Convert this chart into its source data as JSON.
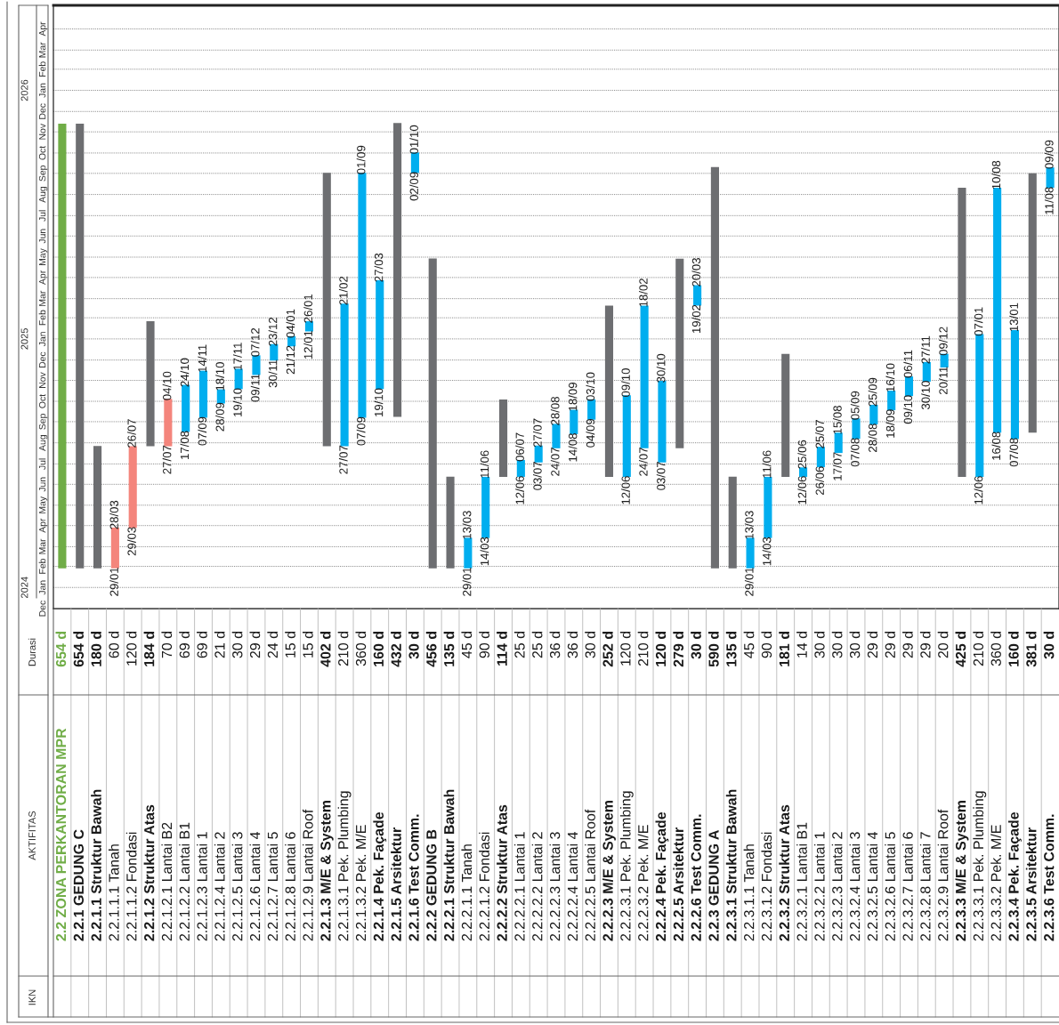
{
  "chart_data": {
    "type": "bar",
    "categories": [
      "2.2 ZONA PERKANTORAN MPR",
      "2.2.1 GEDUNG C",
      "2.2.1.1 Struktur Bawah",
      "2.2.1.1.1 Tanah",
      "2.2.1.1.2 Fondasi",
      "2.2.1.2 Struktur Atas",
      "2.2.1.2.1 Lantai B2",
      "2.2.1.2.2 Lantai B1",
      "2.2.1.2.3 Lantai 1",
      "2.2.1.2.4 Lantai 2",
      "2.2.1.2.5 Lantai 3",
      "2.2.1.2.6 Lantai 4",
      "2.2.1.2.7 Lantai 5",
      "2.2.1.2.8 Lantai 6",
      "2.2.1.2.9 Lantai Roof",
      "2.2.1.3 M/E & System",
      "2.2.1.3.1 Pek. Plumbing",
      "2.2.1.3.2 Pek. M/E",
      "2.2.1.4 Pek. Façade",
      "2.2.1.5 Arsitektur",
      "2.2.1.6 Test Comm.",
      "2.2.2 GEDUNG B",
      "2.2.2.1 Struktur Bawah",
      "2.2.2.1.1 Tanah",
      "2.2.2.1.2 Fondasi",
      "2.2.2.2 Struktur Atas",
      "2.2.2.2.1 Lantai 1",
      "2.2.2.2.2 Lantai 2",
      "2.2.2.2.3 Lantai 3",
      "2.2.2.2.4 Lantai 4",
      "2.2.2.2.5 Lantai Roof",
      "2.2.2.3 M/E & System",
      "2.2.2.3.1 Pek. Plumbing",
      "2.2.2.3.2 Pek. M/E",
      "2.2.2.4 Pek. Façade",
      "2.2.2.5 Arsitektur",
      "2.2.2.6 Test Comm.",
      "2.2.3 GEDUNG A",
      "2.2.3.1 Struktur Bawah",
      "2.2.3.1.1 Tanah",
      "2.2.3.1.2 Fondasi",
      "2.2.3.2 Struktur Atas",
      "2.2.3.2.1 Lantai B1",
      "2.2.3.2.2 Lantai 1",
      "2.2.3.2.3 Lantai 2",
      "2.2.3.2.4 Lantai 3",
      "2.2.3.2.5 Lantai 4",
      "2.2.3.2.6 Lantai 5",
      "2.2.3.2.7 Lantai 6",
      "2.2.3.2.8 Lantai 7",
      "2.2.3.2.9 Lantai Roof",
      "2.2.3.3 M/E & System",
      "2.2.3.3.1 Pek. Plumbing",
      "2.2.3.3.2 Pek. M/E",
      "2.2.3.4 Pek. Façade",
      "2.2.3.5 Arsitektur",
      "2.2.3.6 Test Comm."
    ],
    "values": [
      1.789,
      1.789,
      0.492,
      0.164,
      0.328,
      0.503,
      0.191,
      0.189,
      0.189,
      0.057,
      0.082,
      0.079,
      0.066,
      0.041,
      0.041,
      1.1,
      0.574,
      0.985,
      0.438,
      1.183,
      0.082,
      1.247,
      0.369,
      0.123,
      0.246,
      0.311,
      0.068,
      0.068,
      0.098,
      0.098,
      0.082,
      0.689,
      0.328,
      0.574,
      0.328,
      0.763,
      0.082,
      1.614,
      0.369,
      0.123,
      0.246,
      0.495,
      0.038,
      0.082,
      0.082,
      0.082,
      0.079,
      0.079,
      0.079,
      0.079,
      0.055,
      1.163,
      0.574,
      0.985,
      0.437,
      1.043,
      0.082
    ],
    "base": [
      2024.077,
      2024.077,
      2024.077,
      2024.077,
      2024.24,
      2024.568,
      2024.568,
      2024.626,
      2024.683,
      2024.74,
      2024.798,
      2024.855,
      2024.913,
      2024.97,
      2025.03,
      2024.568,
      2024.568,
      2024.683,
      2024.798,
      2024.686,
      2025.668,
      2024.077,
      2024.077,
      2024.077,
      2024.199,
      2024.445,
      2024.445,
      2024.503,
      2024.56,
      2024.617,
      2024.675,
      2024.445,
      2024.445,
      2024.56,
      2024.503,
      2024.56,
      2025.134,
      2024.077,
      2024.077,
      2024.077,
      2024.199,
      2024.445,
      2024.445,
      2024.484,
      2024.541,
      2024.598,
      2024.656,
      2024.713,
      2024.77,
      2024.828,
      2024.885,
      2024.445,
      2024.445,
      2024.623,
      2024.598,
      2024.623,
      2025.608
    ],
    "colors": [
      "#70ad47",
      "#6d6e71",
      "#6d6e71",
      "#f4857c",
      "#f4857c",
      "#6d6e71",
      "#f4857c",
      "#00aeef",
      "#00aeef",
      "#00aeef",
      "#00aeef",
      "#00aeef",
      "#00aeef",
      "#00aeef",
      "#00aeef",
      "#6d6e71",
      "#00aeef",
      "#00aeef",
      "#00aeef",
      "#6d6e71",
      "#00aeef",
      "#6d6e71",
      "#6d6e71",
      "#00aeef",
      "#00aeef",
      "#6d6e71",
      "#00aeef",
      "#00aeef",
      "#00aeef",
      "#00aeef",
      "#00aeef",
      "#6d6e71",
      "#00aeef",
      "#00aeef",
      "#00aeef",
      "#6d6e71",
      "#00aeef",
      "#6d6e71",
      "#6d6e71",
      "#00aeef",
      "#00aeef",
      "#6d6e71",
      "#00aeef",
      "#00aeef",
      "#00aeef",
      "#00aeef",
      "#00aeef",
      "#00aeef",
      "#00aeef",
      "#00aeef",
      "#00aeef",
      "#6d6e71",
      "#00aeef",
      "#00aeef",
      "#00aeef",
      "#6d6e71",
      "#00aeef"
    ],
    "ylim": [
      2023.915,
      2026.342
    ],
    "yticks": [
      2024,
      2025,
      2026
    ],
    "ref_lines": [
      {
        "axis": "y",
        "value": 2023.915,
        "label": "Dec",
        "line_style": "solid"
      },
      {
        "axis": "y",
        "value": 2024,
        "label": "Jan",
        "line_style": "dotted"
      },
      {
        "axis": "y",
        "value": 2024.085,
        "label": "Feb",
        "line_style": "dotted"
      },
      {
        "axis": "y",
        "value": 2024.164,
        "label": "Mar",
        "line_style": "dotted"
      },
      {
        "axis": "y",
        "value": 2024.249,
        "label": "Apr",
        "line_style": "dotted"
      },
      {
        "axis": "y",
        "value": 2024.331,
        "label": "May",
        "line_style": "dotted"
      },
      {
        "axis": "y",
        "value": 2024.415,
        "label": "Jun",
        "line_style": "dotted"
      },
      {
        "axis": "y",
        "value": 2024.497,
        "label": "Jul",
        "line_style": "dotted"
      },
      {
        "axis": "y",
        "value": 2024.582,
        "label": "Aug",
        "line_style": "dotted"
      },
      {
        "axis": "y",
        "value": 2024.667,
        "label": "Sep",
        "line_style": "dotted"
      },
      {
        "axis": "y",
        "value": 2024.749,
        "label": "Oct",
        "line_style": "dotted"
      },
      {
        "axis": "y",
        "value": 2024.833,
        "label": "Nov",
        "line_style": "dotted"
      },
      {
        "axis": "y",
        "value": 2024.915,
        "label": "Dec",
        "line_style": "dotted"
      },
      {
        "axis": "y",
        "value": 2025,
        "label": "Jan",
        "line_style": "dotted"
      },
      {
        "axis": "y",
        "value": 2025.085,
        "label": "Feb",
        "line_style": "dotted"
      },
      {
        "axis": "y",
        "value": 2025.162,
        "label": "Mar",
        "line_style": "dotted"
      },
      {
        "axis": "y",
        "value": 2025.247,
        "label": "Apr",
        "line_style": "dotted"
      },
      {
        "axis": "y",
        "value": 2025.329,
        "label": "May",
        "line_style": "dotted"
      },
      {
        "axis": "y",
        "value": 2025.414,
        "label": "Jun",
        "line_style": "dotted"
      },
      {
        "axis": "y",
        "value": 2025.496,
        "label": "Jul",
        "line_style": "dotted"
      },
      {
        "axis": "y",
        "value": 2025.581,
        "label": "Aug",
        "line_style": "dotted"
      },
      {
        "axis": "y",
        "value": 2025.666,
        "label": "Sep",
        "line_style": "dotted"
      },
      {
        "axis": "y",
        "value": 2025.748,
        "label": "Oct",
        "line_style": "dotted"
      },
      {
        "axis": "y",
        "value": 2025.833,
        "label": "Nov",
        "line_style": "dotted"
      },
      {
        "axis": "y",
        "value": 2025.915,
        "label": "Dec",
        "line_style": "dotted"
      },
      {
        "axis": "y",
        "value": 2026,
        "label": "Jan",
        "line_style": "dotted"
      },
      {
        "axis": "y",
        "value": 2026.085,
        "label": "Feb",
        "line_style": "dotted"
      },
      {
        "axis": "y",
        "value": 2026.162,
        "label": "Mar",
        "line_style": "dotted"
      },
      {
        "axis": "y",
        "value": 2026.247,
        "label": "Apr",
        "line_style": "dotted"
      }
    ],
    "annotations": [
      "Durasi",
      "AKTIFITAS",
      "IKN",
      "654 d",
      "654 d",
      "180 d",
      "60 d",
      "120 d",
      "184 d",
      "70 d",
      "69 d",
      "69 d",
      "21 d",
      "30 d",
      "29 d",
      "24 d",
      "15 d",
      "15 d",
      "402 d",
      "210 d",
      "360 d",
      "160 d",
      "432 d",
      "30 d",
      "456 d",
      "135 d",
      "45 d",
      "90 d",
      "114 d",
      "25 d",
      "25 d",
      "36 d",
      "36 d",
      "30 d",
      "252 d",
      "120 d",
      "210 d",
      "120 d",
      "279 d",
      "30 d",
      "590 d",
      "135 d",
      "45 d",
      "90 d",
      "181 d",
      "14 d",
      "30 d",
      "30 d",
      "30 d",
      "29 d",
      "29 d",
      "29 d",
      "29 d",
      "20 d",
      "425 d",
      "210 d",
      "360 d",
      "160 d",
      "381 d",
      "30 d",
      {
        "text": "29/01",
        "x": "2.2.1.1.1 Tanah",
        "y": 2024.077
      },
      {
        "text": "28/03",
        "x": "2.2.1.1.1 Tanah",
        "y": 2024.238
      },
      {
        "text": "29/03",
        "x": "2.2.1.1.2 Fondasi",
        "y": 2024.24
      },
      {
        "text": "26/07",
        "x": "2.2.1.1.2 Fondasi",
        "y": 2024.566
      },
      {
        "text": "27/07",
        "x": "2.2.1.2.1 Lantai B2",
        "y": 2024.568
      },
      {
        "text": "04/10",
        "x": "2.2.1.2.1 Lantai B2",
        "y": 2024.757
      },
      {
        "text": "17/08",
        "x": "2.2.1.2.2 Lantai B1",
        "y": 2024.626
      },
      {
        "text": "24/10",
        "x": "2.2.1.2.2 Lantai B1",
        "y": 2024.811
      },
      {
        "text": "07/09",
        "x": "2.2.1.2.3 Lantai 1",
        "y": 2024.683
      },
      {
        "text": "14/11",
        "x": "2.2.1.2.3 Lantai 1",
        "y": 2024.869
      },
      {
        "text": "28/09",
        "x": "2.2.1.2.4 Lantai 2",
        "y": 2024.74
      },
      {
        "text": "18/10",
        "x": "2.2.1.2.4 Lantai 2",
        "y": 2024.795
      },
      {
        "text": "19/10",
        "x": "2.2.1.2.5 Lantai 3",
        "y": 2024.798
      },
      {
        "text": "17/11",
        "x": "2.2.1.2.5 Lantai 3",
        "y": 2024.877
      },
      {
        "text": "09/11",
        "x": "2.2.1.2.6 Lantai 4",
        "y": 2024.855
      },
      {
        "text": "07/12",
        "x": "2.2.1.2.6 Lantai 4",
        "y": 2024.932
      },
      {
        "text": "30/11",
        "x": "2.2.1.2.7 Lantai 5",
        "y": 2024.913
      },
      {
        "text": "23/12",
        "x": "2.2.1.2.7 Lantai 5",
        "y": 2024.975
      },
      {
        "text": "21/12",
        "x": "2.2.1.2.8 Lantai 6",
        "y": 2024.97
      },
      {
        "text": "04/01",
        "x": "2.2.1.2.8 Lantai 6",
        "y": 2025.008
      },
      {
        "text": "12/01",
        "x": "2.2.1.2.9 Lantai Roof",
        "y": 2025.03
      },
      {
        "text": "26/01",
        "x": "2.2.1.2.9 Lantai Roof",
        "y": 2025.068
      },
      {
        "text": "27/07",
        "x": "2.2.1.3.1 Pek. Plumbing",
        "y": 2024.568
      },
      {
        "text": "21/02",
        "x": "2.2.1.3.1 Pek. Plumbing",
        "y": 2025.14
      },
      {
        "text": "07/09",
        "x": "2.2.1.3.2 Pek. M/E",
        "y": 2024.683
      },
      {
        "text": "01/09",
        "x": "2.2.1.3.2 Pek. M/E",
        "y": 2025.666
      },
      {
        "text": "19/10",
        "x": "2.2.1.4 Pek. Façade",
        "y": 2024.798
      },
      {
        "text": "27/03",
        "x": "2.2.1.4 Pek. Façade",
        "y": 2025.233
      },
      {
        "text": "02/09",
        "x": "2.2.1.6 Test Comm.",
        "y": 2025.668
      },
      {
        "text": "01/10",
        "x": "2.2.1.6 Test Comm.",
        "y": 2025.748
      },
      {
        "text": "29/01",
        "x": "2.2.2.1.1 Tanah",
        "y": 2024.077
      },
      {
        "text": "13/03",
        "x": "2.2.2.1.1 Tanah",
        "y": 2024.197
      },
      {
        "text": "14/03",
        "x": "2.2.2.1.2 Fondasi",
        "y": 2024.199
      },
      {
        "text": "11/06",
        "x": "2.2.2.1.2 Fondasi",
        "y": 2024.443
      },
      {
        "text": "12/06",
        "x": "2.2.2.2.1 Lantai 1",
        "y": 2024.445
      },
      {
        "text": "06/07",
        "x": "2.2.2.2.1 Lantai 1",
        "y": 2024.511
      },
      {
        "text": "03/07",
        "x": "2.2.2.2.2 Lantai 2",
        "y": 2024.503
      },
      {
        "text": "27/07",
        "x": "2.2.2.2.2 Lantai 2",
        "y": 2024.568
      },
      {
        "text": "24/07",
        "x": "2.2.2.2.3 Lantai 3",
        "y": 2024.56
      },
      {
        "text": "28/08",
        "x": "2.2.2.2.3 Lantai 3",
        "y": 2024.656
      },
      {
        "text": "14/08",
        "x": "2.2.2.2.4 Lantai 4",
        "y": 2024.617
      },
      {
        "text": "18/09",
        "x": "2.2.2.2.4 Lantai 4",
        "y": 2024.713
      },
      {
        "text": "04/09",
        "x": "2.2.2.2.5 Lantai Roof",
        "y": 2024.675
      },
      {
        "text": "03/10",
        "x": "2.2.2.2.5 Lantai Roof",
        "y": 2024.754
      },
      {
        "text": "12/06",
        "x": "2.2.2.3.1 Pek. Plumbing",
        "y": 2024.445
      },
      {
        "text": "09/10",
        "x": "2.2.2.3.1 Pek. Plumbing",
        "y": 2024.77
      },
      {
        "text": "24/07",
        "x": "2.2.2.3.2 Pek. M/E",
        "y": 2024.56
      },
      {
        "text": "18/02",
        "x": "2.2.2.3.2 Pek. M/E",
        "y": 2025.132
      },
      {
        "text": "03/07",
        "x": "2.2.2.4 Pek. Façade",
        "y": 2024.503
      },
      {
        "text": "30/10",
        "x": "2.2.2.4 Pek. Façade",
        "y": 2024.828
      },
      {
        "text": "19/02",
        "x": "2.2.2.6 Test Comm.",
        "y": 2025.134
      },
      {
        "text": "20/03",
        "x": "2.2.2.6 Test Comm.",
        "y": 2025.214
      },
      {
        "text": "29/01",
        "x": "2.2.3.1.1 Tanah",
        "y": 2024.077
      },
      {
        "text": "13/03",
        "x": "2.2.3.1.1 Tanah",
        "y": 2024.197
      },
      {
        "text": "14/03",
        "x": "2.2.3.1.2 Fondasi",
        "y": 2024.199
      },
      {
        "text": "11/06",
        "x": "2.2.3.1.2 Fondasi",
        "y": 2024.443
      },
      {
        "text": "12/06",
        "x": "2.2.3.2.1 Lantai B1",
        "y": 2024.445
      },
      {
        "text": "25/06",
        "x": "2.2.3.2.1 Lantai B1",
        "y": 2024.481
      },
      {
        "text": "26/06",
        "x": "2.2.3.2.2 Lantai 1",
        "y": 2024.484
      },
      {
        "text": "25/07",
        "x": "2.2.3.2.2 Lantai 1",
        "y": 2024.563
      },
      {
        "text": "17/07",
        "x": "2.2.3.2.3 Lantai 2",
        "y": 2024.541
      },
      {
        "text": "15/08",
        "x": "2.2.3.2.3 Lantai 2",
        "y": 2024.62
      },
      {
        "text": "07/08",
        "x": "2.2.3.2.4 Lantai 3",
        "y": 2024.598
      },
      {
        "text": "05/09",
        "x": "2.2.3.2.4 Lantai 3",
        "y": 2024.678
      },
      {
        "text": "28/08",
        "x": "2.2.3.2.5 Lantai 4",
        "y": 2024.656
      },
      {
        "text": "25/09",
        "x": "2.2.3.2.5 Lantai 4",
        "y": 2024.732
      },
      {
        "text": "18/09",
        "x": "2.2.3.2.6 Lantai 5",
        "y": 2024.713
      },
      {
        "text": "16/10",
        "x": "2.2.3.2.6 Lantai 5",
        "y": 2024.79
      },
      {
        "text": "09/10",
        "x": "2.2.3.2.7 Lantai 6",
        "y": 2024.77
      },
      {
        "text": "06/11",
        "x": "2.2.3.2.7 Lantai 6",
        "y": 2024.847
      },
      {
        "text": "30/10",
        "x": "2.2.3.2.8 Lantai 7",
        "y": 2024.828
      },
      {
        "text": "27/11",
        "x": "2.2.3.2.8 Lantai 7",
        "y": 2024.904
      },
      {
        "text": "20/11",
        "x": "2.2.3.2.9 Lantai Roof",
        "y": 2024.885
      },
      {
        "text": "09/12",
        "x": "2.2.3.2.9 Lantai Roof",
        "y": 2024.937
      },
      {
        "text": "12/06",
        "x": "2.2.3.3.1 Pek. Plumbing",
        "y": 2024.445
      },
      {
        "text": "07/01",
        "x": "2.2.3.3.1 Pek. Plumbing",
        "y": 2025.016
      },
      {
        "text": "16/08",
        "x": "2.2.3.3.2 Pek. M/E",
        "y": 2024.623
      },
      {
        "text": "10/08",
        "x": "2.2.3.3.2 Pek. M/E",
        "y": 2025.605
      },
      {
        "text": "07/08",
        "x": "2.2.3.4 Pek. Façade",
        "y": 2024.598
      },
      {
        "text": "13/01",
        "x": "2.2.3.4 Pek. Façade",
        "y": 2025.033
      },
      {
        "text": "11/08",
        "x": "2.2.3.6 Test Comm.",
        "y": 2025.608
      },
      {
        "text": "09/09",
        "x": "2.2.3.6 Test Comm.",
        "y": 2025.688
      }
    ]
  }
}
